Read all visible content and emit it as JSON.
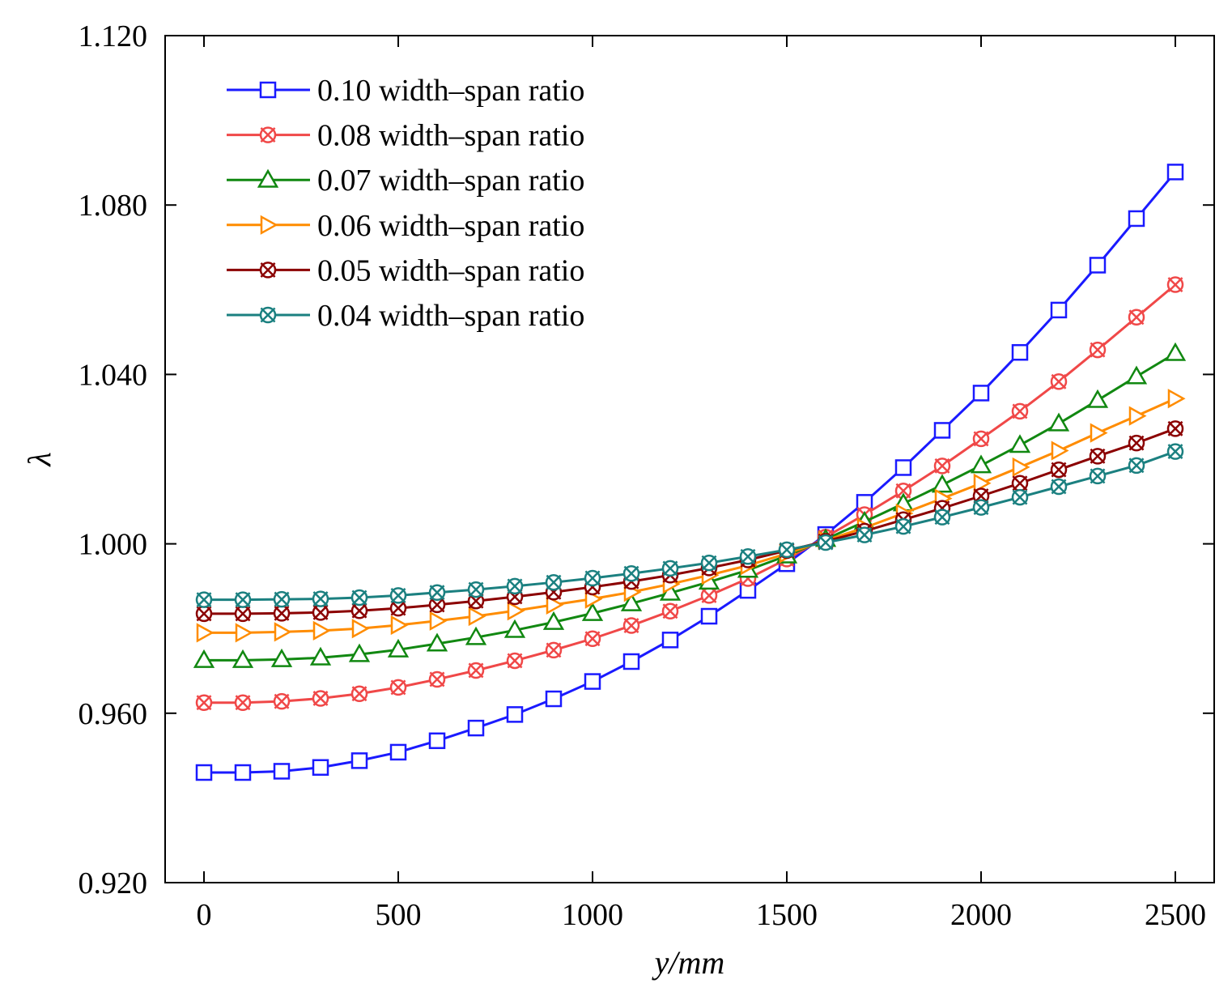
{
  "chart_data": {
    "type": "line",
    "title": "",
    "xlabel": "y/mm",
    "ylabel": "λ",
    "xlim": [
      -100,
      2600
    ],
    "ylim": [
      0.92,
      1.12
    ],
    "xticks": [
      0,
      500,
      1000,
      1500,
      2000,
      2500
    ],
    "xtick_labels": [
      "0",
      "500",
      "1000",
      "1500",
      "2000",
      "2500"
    ],
    "yticks": [
      0.92,
      0.96,
      1.0,
      1.04,
      1.08,
      1.12
    ],
    "ytick_labels": [
      "0.920",
      "0.960",
      "1.000",
      "1.040",
      "1.080",
      "1.120"
    ],
    "grid": false,
    "legend_position": "top-left",
    "x": [
      0,
      100,
      200,
      300,
      400,
      500,
      600,
      700,
      800,
      900,
      1000,
      1100,
      1200,
      1300,
      1400,
      1500,
      1600,
      1700,
      1800,
      1900,
      2000,
      2100,
      2200,
      2300,
      2400,
      2500
    ],
    "series": [
      {
        "name": "0.10 width–span ratio",
        "color": "#1a1aff",
        "marker": "square",
        "values": [
          0.946,
          0.946,
          0.9463,
          0.9472,
          0.9488,
          0.9508,
          0.9535,
          0.9565,
          0.9597,
          0.9634,
          0.9675,
          0.9722,
          0.9773,
          0.9829,
          0.989,
          0.9953,
          1.0022,
          1.0098,
          1.018,
          1.0268,
          1.0356,
          1.0452,
          1.0552,
          1.0658,
          1.0768,
          1.0878
        ]
      },
      {
        "name": "0.08 width–span ratio",
        "color": "#f04848",
        "marker": "circle-x",
        "values": [
          0.9625,
          0.9625,
          0.9628,
          0.9635,
          0.9646,
          0.9661,
          0.968,
          0.9701,
          0.9724,
          0.9749,
          0.9776,
          0.9807,
          0.9841,
          0.9878,
          0.9918,
          0.9964,
          1.0016,
          1.0069,
          1.0125,
          1.0184,
          1.0248,
          1.0313,
          1.0383,
          1.0458,
          1.0535,
          1.0612
        ]
      },
      {
        "name": "0.07 width–span ratio",
        "color": "#118811",
        "marker": "triangle",
        "values": [
          0.9725,
          0.9725,
          0.9727,
          0.9731,
          0.9739,
          0.975,
          0.9764,
          0.9779,
          0.9796,
          0.9815,
          0.9836,
          0.9859,
          0.9884,
          0.991,
          0.9938,
          0.9972,
          1.0011,
          1.0052,
          1.0095,
          1.0139,
          1.0185,
          1.0233,
          1.0284,
          1.0339,
          1.0395,
          1.045
        ]
      },
      {
        "name": "0.06 width–span ratio",
        "color": "#ff8c00",
        "marker": "triangle-right",
        "values": [
          0.979,
          0.979,
          0.9792,
          0.9795,
          0.98,
          0.9808,
          0.9818,
          0.9829,
          0.9842,
          0.9856,
          0.987,
          0.9886,
          0.9905,
          0.9926,
          0.9949,
          0.9977,
          1.0008,
          1.0038,
          1.0072,
          1.0107,
          1.0143,
          1.0181,
          1.022,
          1.0262,
          1.0302,
          1.0343
        ]
      },
      {
        "name": "0.05 width–span ratio",
        "color": "#8b0000",
        "marker": "circle-x",
        "values": [
          0.9835,
          0.9835,
          0.9836,
          0.9838,
          0.9842,
          0.9848,
          0.9856,
          0.9865,
          0.9875,
          0.9886,
          0.9898,
          0.9911,
          0.9926,
          0.9943,
          0.9962,
          0.9984,
          1.0006,
          1.003,
          1.0057,
          1.0084,
          1.0113,
          1.0143,
          1.0175,
          1.0207,
          1.0238,
          1.0272
        ]
      },
      {
        "name": "0.04 width–span ratio",
        "color": "#1b8080",
        "marker": "circle-x",
        "values": [
          0.9868,
          0.9868,
          0.9869,
          0.987,
          0.9873,
          0.9878,
          0.9885,
          0.9892,
          0.99,
          0.9909,
          0.9919,
          0.993,
          0.9942,
          0.9955,
          0.997,
          0.9986,
          1.0003,
          1.0021,
          1.0041,
          1.0063,
          1.0086,
          1.011,
          1.0135,
          1.016,
          1.0185,
          1.0218
        ]
      }
    ]
  }
}
